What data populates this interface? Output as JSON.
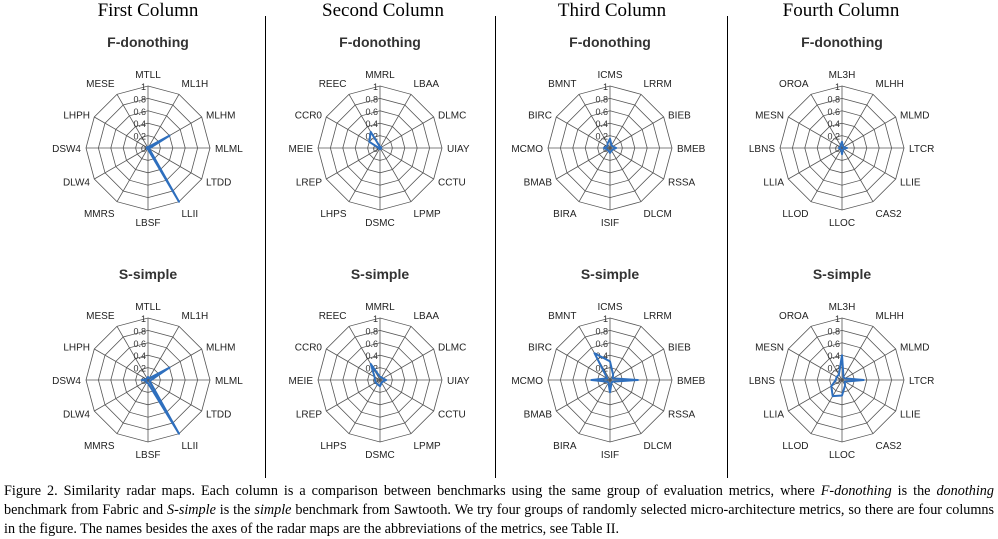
{
  "columns": [
    {
      "title": "First Column"
    },
    {
      "title": "Second Column"
    },
    {
      "title": "Third Column"
    },
    {
      "title": "Fourth Column"
    }
  ],
  "chart_data": [
    {
      "type": "radar",
      "title": "F-donothing",
      "column": 1,
      "rlim": [
        0,
        1
      ],
      "ticks": [
        "0",
        "0.2",
        "0.4",
        "0.6",
        "0.8",
        "1"
      ],
      "axes": [
        "MTLL",
        "ML1H",
        "MLHM",
        "MLML",
        "LTDD",
        "LLII",
        "LBSF",
        "MMRS",
        "DLW4",
        "DSW4",
        "LHPH",
        "MESE"
      ],
      "values": [
        0.02,
        0.02,
        0.4,
        0.03,
        0.02,
        1.0,
        0.02,
        0.02,
        0.02,
        0.02,
        0.02,
        0.02
      ]
    },
    {
      "type": "radar",
      "title": "F-donothing",
      "column": 2,
      "rlim": [
        0,
        1
      ],
      "ticks": [
        "0",
        "0.2",
        "0.4",
        "0.6",
        "0.8",
        "1"
      ],
      "axes": [
        "MMRL",
        "LBAA",
        "DLMC",
        "UIAY",
        "CCTU",
        "LPMP",
        "DSMC",
        "LHPS",
        "LREP",
        "MEIE",
        "CCR0",
        "REEC"
      ],
      "values": [
        0.02,
        0.02,
        0.02,
        0.02,
        0.02,
        0.02,
        0.02,
        0.02,
        0.02,
        0.02,
        0.2,
        0.3
      ]
    },
    {
      "type": "radar",
      "title": "F-donothing",
      "column": 3,
      "rlim": [
        0,
        1
      ],
      "ticks": [
        "0",
        "0.2",
        "0.4",
        "0.6",
        "0.8",
        "1"
      ],
      "axes": [
        "ICMS",
        "LRRM",
        "BIEB",
        "BMEB",
        "RSSA",
        "DLCM",
        "ISIF",
        "BIRA",
        "BMAB",
        "MCMO",
        "BIRC",
        "BMNT"
      ],
      "values": [
        0.15,
        0.05,
        0.05,
        0.1,
        0.05,
        0.05,
        0.08,
        0.05,
        0.05,
        0.1,
        0.05,
        0.08
      ]
    },
    {
      "type": "radar",
      "title": "F-donothing",
      "column": 4,
      "rlim": [
        0,
        1
      ],
      "ticks": [
        "0",
        "0.2",
        "0.4",
        "0.6",
        "0.8",
        "1"
      ],
      "axes": [
        "ML3H",
        "MLHH",
        "MLMD",
        "LTCR",
        "LLIE",
        "CAS2",
        "LLOC",
        "LLOD",
        "LLIA",
        "LBNS",
        "MESN",
        "OROA"
      ],
      "values": [
        0.1,
        0.03,
        0.03,
        0.08,
        0.03,
        0.03,
        0.1,
        0.03,
        0.03,
        0.05,
        0.03,
        0.05
      ]
    },
    {
      "type": "radar",
      "title": "S-simple",
      "column": 1,
      "rlim": [
        0,
        1
      ],
      "ticks": [
        "0",
        "0.2",
        "0.4",
        "0.6",
        "0.8",
        "1"
      ],
      "axes": [
        "MTLL",
        "ML1H",
        "MLHM",
        "MLML",
        "LTDD",
        "LLII",
        "LBSF",
        "MMRS",
        "DLW4",
        "DSW4",
        "LHPH",
        "MESE"
      ],
      "values": [
        0.05,
        0.03,
        0.4,
        0.05,
        0.03,
        1.0,
        0.05,
        0.05,
        0.03,
        0.1,
        0.03,
        0.03
      ]
    },
    {
      "type": "radar",
      "title": "S-simple",
      "column": 2,
      "rlim": [
        0,
        1
      ],
      "ticks": [
        "0",
        "0.2",
        "0.4",
        "0.6",
        "0.8",
        "1"
      ],
      "axes": [
        "MMRL",
        "LBAA",
        "DLMC",
        "UIAY",
        "CCTU",
        "LPMP",
        "DSMC",
        "LHPS",
        "LREP",
        "MEIE",
        "CCR0",
        "REEC"
      ],
      "values": [
        0.05,
        0.05,
        0.05,
        0.1,
        0.05,
        0.05,
        0.1,
        0.08,
        0.08,
        0.08,
        0.1,
        0.3
      ]
    },
    {
      "type": "radar",
      "title": "S-simple",
      "column": 3,
      "rlim": [
        0,
        1
      ],
      "ticks": [
        "0",
        "0.2",
        "0.4",
        "0.6",
        "0.8",
        "1"
      ],
      "axes": [
        "ICMS",
        "LRRM",
        "BIEB",
        "BMEB",
        "RSSA",
        "DLCM",
        "ISIF",
        "BIRA",
        "BMAB",
        "MCMO",
        "BIRC",
        "BMNT"
      ],
      "values": [
        0.3,
        0.1,
        0.05,
        0.45,
        0.05,
        0.05,
        0.2,
        0.05,
        0.05,
        0.3,
        0.05,
        0.5
      ]
    },
    {
      "type": "radar",
      "title": "S-simple",
      "column": 4,
      "rlim": [
        0,
        1
      ],
      "ticks": [
        "0",
        "0.2",
        "0.4",
        "0.6",
        "0.8",
        "1"
      ],
      "axes": [
        "ML3H",
        "MLHH",
        "MLMD",
        "LTCR",
        "LLIE",
        "CAS2",
        "LLOC",
        "LLOD",
        "LLIA",
        "LBNS",
        "MESN",
        "OROA"
      ],
      "values": [
        0.4,
        0.05,
        0.05,
        0.35,
        0.05,
        0.1,
        0.25,
        0.3,
        0.2,
        0.1,
        0.1,
        0.1
      ]
    }
  ],
  "style": {
    "line_color": "#2e6fbe",
    "grid_color": "#555555"
  },
  "caption": {
    "p1": "Figure 2.   Similarity radar maps. Each column is a comparison between benchmarks using the same group of evaluation metrics, where ",
    "i1": "F-donothing",
    "p2": " is the ",
    "i2": "donothing",
    "p3": " benchmark from Fabric and ",
    "i3": "S-simple",
    "p4": " is the ",
    "i4": "simple",
    "p5": " benchmark from Sawtooth. We try four groups of randomly selected micro-architecture metrics, so there are four columns in the figure. The names besides the axes of the radar maps are the abbreviations of the metrics, see Table II."
  }
}
